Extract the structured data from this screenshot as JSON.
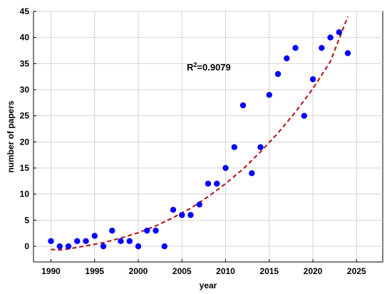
{
  "chart_data": {
    "type": "scatter",
    "xlabel": "year",
    "ylabel": "number of papers",
    "xlim": [
      1988,
      2028
    ],
    "ylim": [
      -3,
      45
    ],
    "xticks": [
      1990,
      1995,
      2000,
      2005,
      2010,
      2015,
      2020,
      2025
    ],
    "yticks": [
      0,
      5,
      10,
      15,
      20,
      25,
      30,
      35,
      40,
      45
    ],
    "grid": true,
    "legend": "none",
    "annotation": {
      "r2_prefix": "R",
      "r2_exp": "2",
      "r2_value": "=0.9079"
    },
    "point_color": "#0000ff",
    "trend_color": "#b22222",
    "series": [
      {
        "x": [
          1990,
          1991,
          1992,
          1993,
          1994,
          1995,
          1996,
          1997,
          1998,
          1999,
          2000,
          2001,
          2002,
          2003,
          2004,
          2005,
          2006,
          2007,
          2008,
          2009,
          2010,
          2011,
          2012,
          2013,
          2014,
          2015,
          2016,
          2017,
          2018,
          2019,
          2020,
          2021,
          2022,
          2023,
          2024
        ],
        "y": [
          1,
          0,
          0,
          1,
          1,
          2,
          0,
          3,
          1,
          1,
          0,
          3,
          3,
          0,
          7,
          6,
          6,
          8,
          12,
          12,
          15,
          19,
          27,
          14,
          19,
          29,
          33,
          36,
          38,
          25,
          32,
          38,
          40,
          41,
          37
        ]
      }
    ],
    "trendline": {
      "type": "quadratic",
      "x": [
        1990,
        1991,
        1992,
        1994,
        1996,
        1998,
        2000,
        2002,
        2004,
        2006,
        2008,
        2010,
        2012,
        2014,
        2016,
        2018,
        2020,
        2022,
        2024
      ],
      "y": [
        -0.6,
        -0.7,
        -0.5,
        0.1,
        0.7,
        1.6,
        2.6,
        3.9,
        5.5,
        7.3,
        9.5,
        12.0,
        14.8,
        18.1,
        21.7,
        25.7,
        30.2,
        35.4,
        44.0
      ]
    }
  }
}
